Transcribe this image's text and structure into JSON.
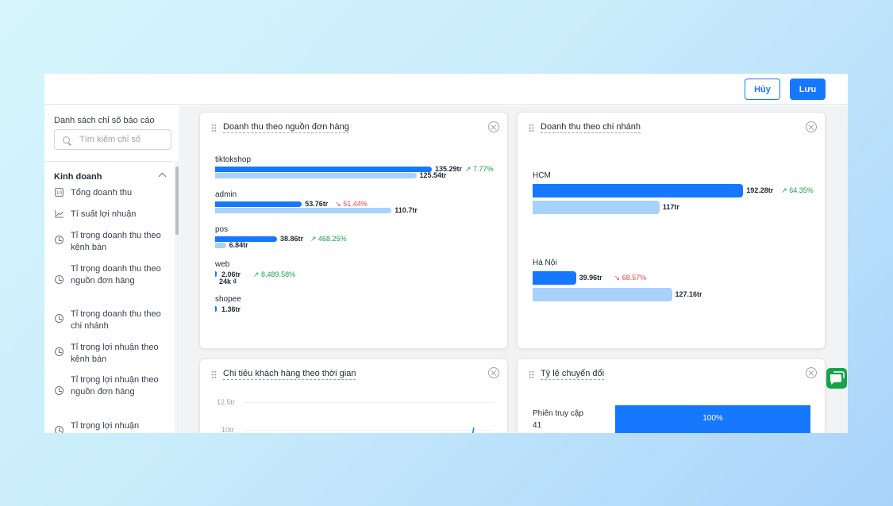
{
  "header": {
    "cancel_label": "Hủy",
    "save_label": "Lưu"
  },
  "sidebar": {
    "title": "Danh sách chỉ số báo cáo",
    "search_placeholder": "Tìm kiếm chỉ số",
    "group_label": "Kinh doanh",
    "items": [
      {
        "label": "Tổng doanh thu",
        "icon": "calendar-number-icon"
      },
      {
        "label": "Tí suất lợi nhuận",
        "icon": "line-chart-icon"
      },
      {
        "label": "Tỉ trọng doanh thu theo kênh bán",
        "icon": "pie-chart-icon"
      },
      {
        "label": "Tỉ trọng doanh thu theo nguồn đơn hàng",
        "icon": "pie-chart-icon"
      },
      {
        "label": "Tỉ trọng doanh thu theo chi nhánh",
        "icon": "pie-chart-icon"
      },
      {
        "label": "Tỉ trọng lợi nhuận theo kênh bán",
        "icon": "pie-chart-icon"
      },
      {
        "label": "Tỉ trọng lợi nhuận theo nguồn đơn hàng",
        "icon": "pie-chart-icon"
      },
      {
        "label": "Tỉ trọng lợi nhuận",
        "icon": "pie-chart-icon"
      }
    ]
  },
  "cards": {
    "source": {
      "title": "Doanh thu theo nguồn đơn hàng",
      "rows": [
        {
          "label": "tiktokshop",
          "current": "135.29tr",
          "previous": "125.54tr",
          "change": "↗ 7.77%",
          "direction": "up",
          "current_fraction": 0.7,
          "previous_fraction": 0.65
        },
        {
          "label": "admin",
          "current": "53.76tr",
          "previous": "110.7tr",
          "change": "↘ 51.44%",
          "direction": "down",
          "current_fraction": 0.28,
          "previous_fraction": 0.57
        },
        {
          "label": "pos",
          "current": "38.86tr",
          "previous": "6.84tr",
          "change": "↗ 468.25%",
          "direction": "up",
          "current_fraction": 0.2,
          "previous_fraction": 0.035
        },
        {
          "label": "web",
          "current": "2.06tr",
          "previous": "24k ₫",
          "change": "↗ 8,489.58%",
          "direction": "up",
          "current_fraction": 0.01,
          "previous_fraction": 0.0
        },
        {
          "label": "shopee",
          "current": "1.36tr",
          "previous": "",
          "change": "",
          "direction": "up",
          "current_fraction": 0.007,
          "previous_fraction": 0.0
        }
      ]
    },
    "branch": {
      "title": "Doanh thu theo chi nhánh",
      "rows": [
        {
          "label": "HCM",
          "current": "192.28tr",
          "previous": "117tr",
          "change": "↗ 64.35%",
          "direction": "up",
          "current_fraction": 0.68,
          "previous_fraction": 0.41
        },
        {
          "label": "Hà Nội",
          "current": "39.96tr",
          "previous": "127.16tr",
          "change": "↘ 68.57%",
          "direction": "down",
          "current_fraction": 0.14,
          "previous_fraction": 0.45
        }
      ]
    },
    "customer": {
      "title": "Chi tiêu khách hàng theo thời gian",
      "y_ticks": [
        "12.5tr",
        "10tr"
      ]
    },
    "conversion": {
      "title": "Tỷ lệ chuyển đổi",
      "stage_label": "Phiên truy cập",
      "stage_count": "41",
      "stage_percent": "100%",
      "stage_fraction": 1.0
    }
  },
  "colors": {
    "accent": "#1677ff",
    "bar_previous": "#a8d1fb",
    "up": "#16a34a",
    "down": "#ef4444",
    "chat": "#16a34a"
  }
}
